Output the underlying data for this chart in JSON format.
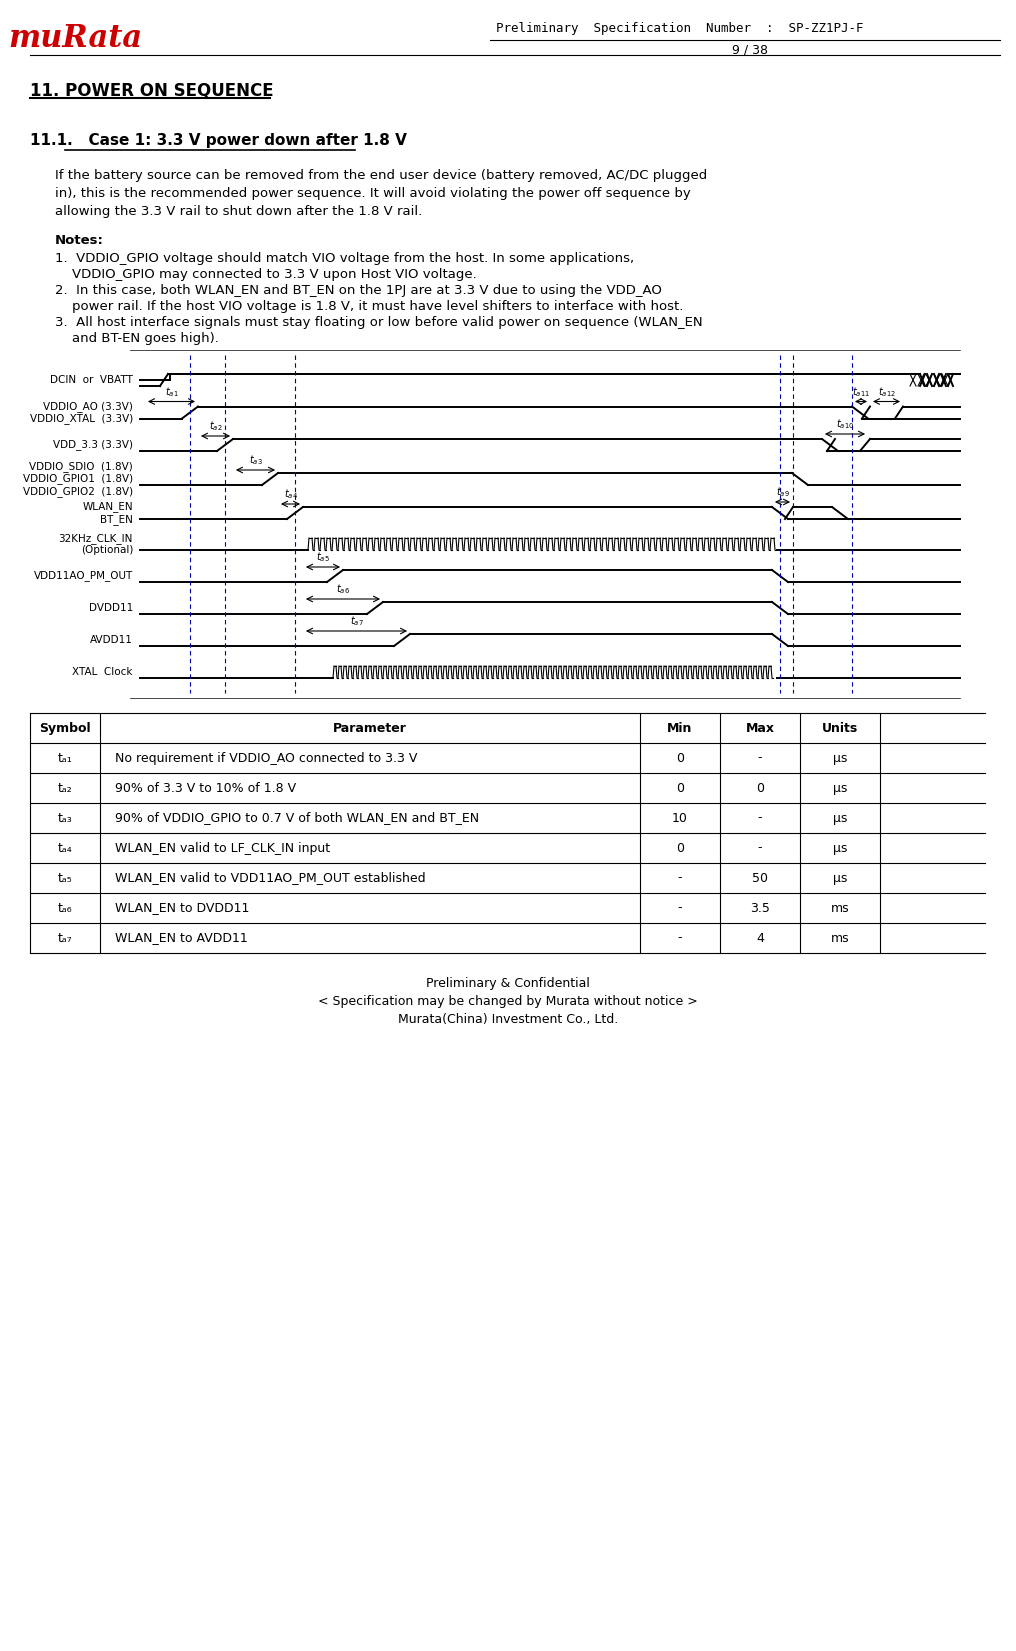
{
  "title_header": "Preliminary  Specification  Number  :  SP-ZZ1PJ-F",
  "page": "9 / 38",
  "section_title": "11. POWER ON SEQUENCE",
  "subsection_title": "11.1.   Case 1: 3.3 V power down after 1.8 V",
  "paragraph1": "If the battery source can be removed from the end user device (battery removed, AC/DC plugged in), this is the recommended power sequence. It will avoid violating the power off sequence by allowing the 3.3 V rail to shut down after the 1.8 V rail.",
  "notes_title": "Notes:",
  "notes": [
    "VDDIO_GPIO voltage should match VIO voltage from the host. In some applications, VDDIO_GPIO may connected to 3.3 V upon Host VIO voltage.",
    "In this case, both WLAN_EN and BT_EN on the 1PJ are at 3.3 V due to using the VDD_AO power rail. If the host VIO voltage is 1.8 V, it must have level shifters to interface with host.",
    "All host interface signals must stay floating or low before valid power on sequence (WLAN_EN and BT-EN goes high)."
  ],
  "signal_labels": [
    "DCIN  or  VBATT",
    "VDDIO_AO (3.3V)\nVDDIO_XTAL  (3.3V)",
    "VDD_3.3 (3.3V)",
    "VDDIO_SDIO  (1.8V)\nVDDIO_GPIO1  (1.8V)\nVDDIO_GPIO2  (1.8V)",
    "WLAN_EN\nBT_EN",
    "32KHz_CLK_IN\n(Optional)",
    "VDD11AO_PM_OUT",
    "DVDD11",
    "AVDD11",
    "XTAL  Clock"
  ],
  "table_headers": [
    "Symbol",
    "Parameter",
    "Min",
    "Max",
    "Units"
  ],
  "table_rows": [
    [
      "tₐ₁",
      "No requirement if VDDIO_AO connected to 3.3 V",
      "0",
      "-",
      "μs"
    ],
    [
      "tₐ₂",
      "90% of 3.3 V to 10% of 1.8 V",
      "0",
      "0",
      "μs"
    ],
    [
      "tₐ₃",
      "90% of VDDIO_GPIO to 0.7 V of both WLAN_EN and BT_EN",
      "10",
      "-",
      "μs"
    ],
    [
      "tₐ₄",
      "WLAN_EN valid to LF_CLK_IN input",
      "0",
      "-",
      "μs"
    ],
    [
      "tₐ₅",
      "WLAN_EN valid to VDD11AO_PM_OUT established",
      "-",
      "50",
      "μs"
    ],
    [
      "tₐ₆",
      "WLAN_EN to DVDD11",
      "-",
      "3.5",
      "ms"
    ],
    [
      "tₐ₇",
      "WLAN_EN to AVDD11",
      "-",
      "4",
      "ms"
    ]
  ],
  "footer": "Preliminary & Confidential\n< Specification may be changed by Murata without notice >\nMurata(China) Investment Co., Ltd.",
  "bg_color": "#ffffff",
  "text_color": "#000000",
  "signal_color": "#000000",
  "timing_line_color": "#000000",
  "dashed_line_color": "#0000aa"
}
